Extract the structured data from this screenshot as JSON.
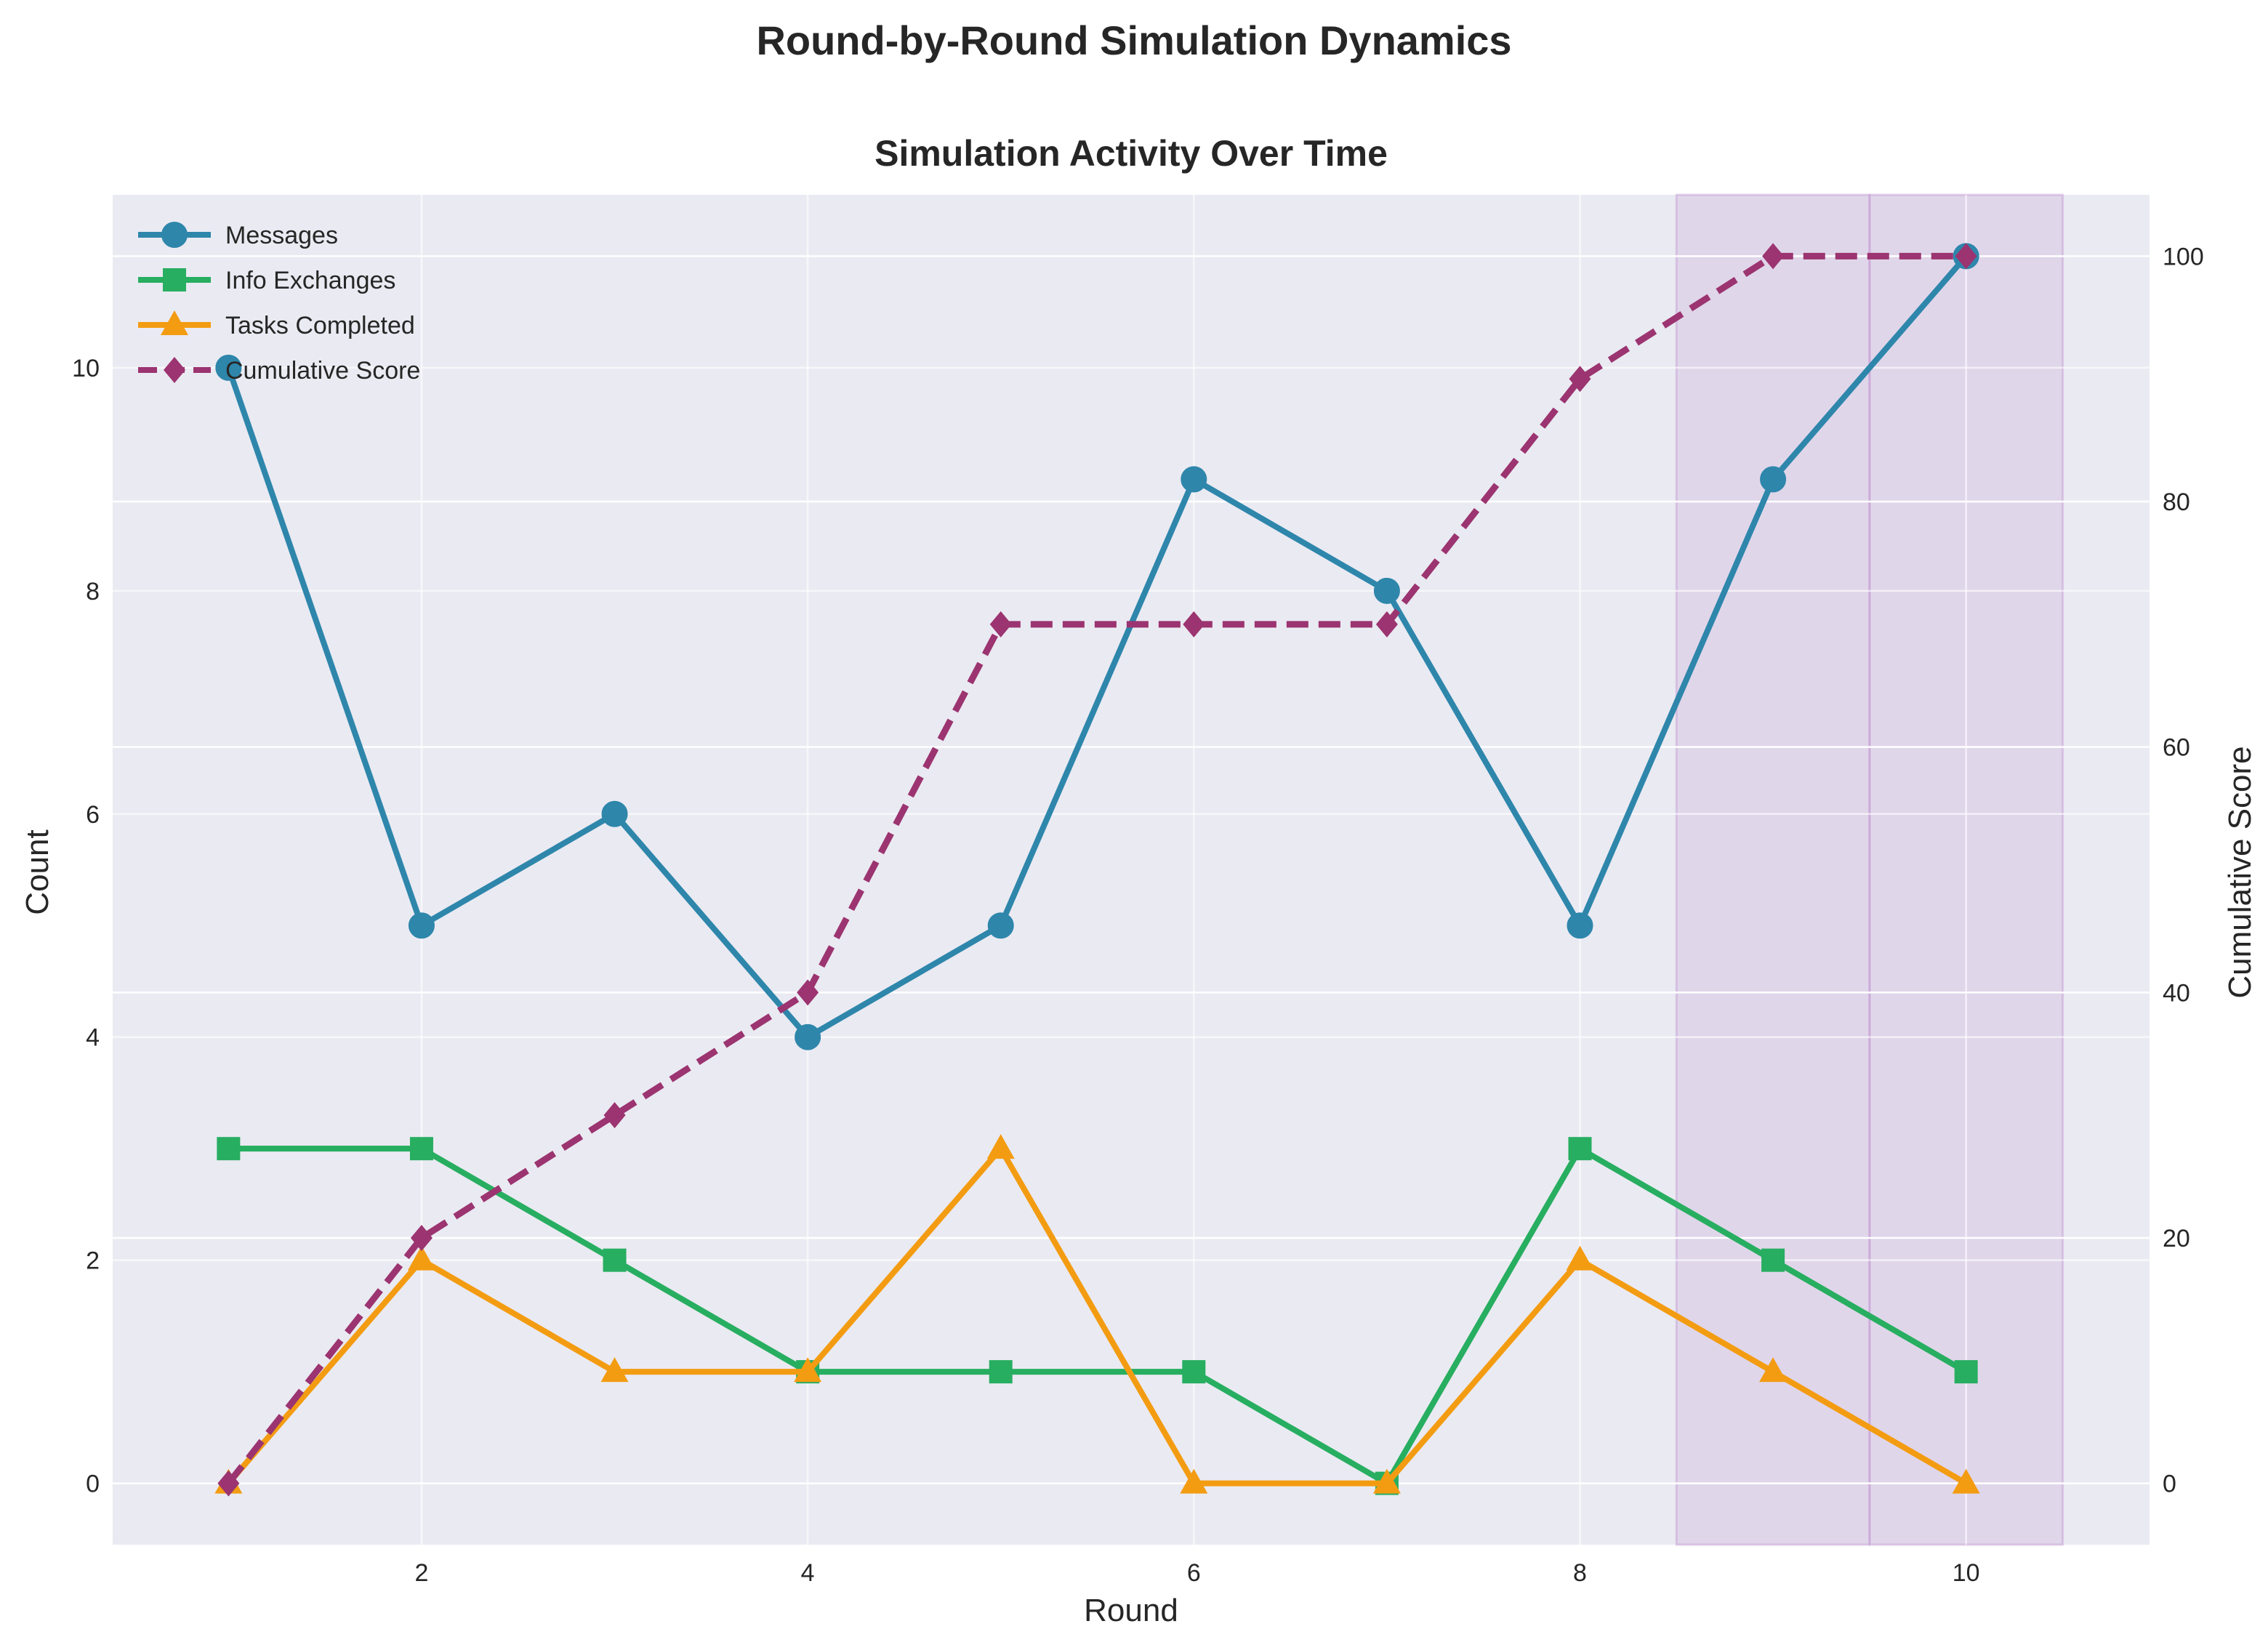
{
  "figure": {
    "suptitle": "Round-by-Round Simulation Dynamics"
  },
  "chart_data": {
    "type": "line",
    "title": "Simulation Activity Over Time",
    "xlabel": "Round",
    "ylabel": "Count",
    "ylabel_right": "Cumulative Score",
    "x": [
      1,
      2,
      3,
      4,
      5,
      6,
      7,
      8,
      9,
      10
    ],
    "xlim": [
      0.4,
      10.95
    ],
    "ylim": [
      -0.55,
      11.55
    ],
    "ylim_right": [
      -5,
      105
    ],
    "xticks": [
      2,
      4,
      6,
      8,
      10
    ],
    "yticks": [
      0,
      2,
      4,
      6,
      8,
      10
    ],
    "yticks_right": [
      0,
      20,
      40,
      60,
      80,
      100
    ],
    "grid": true,
    "legend_position": "top-left",
    "background": "#eaeaf2",
    "highlight_regions": [
      {
        "x_start": 8.5,
        "x_end": 9.5,
        "color": "#c39bd3"
      },
      {
        "x_start": 9.5,
        "x_end": 10.5,
        "color": "#c39bd3"
      }
    ],
    "series": [
      {
        "name": "Messages",
        "axis": "left",
        "color": "#2e86ab",
        "marker": "circle",
        "dash": "solid",
        "values": [
          10,
          5,
          6,
          4,
          5,
          9,
          8,
          5,
          9,
          11
        ]
      },
      {
        "name": "Info Exchanges",
        "axis": "left",
        "color": "#27ae60",
        "marker": "square",
        "dash": "solid",
        "values": [
          3,
          3,
          2,
          1,
          1,
          1,
          0,
          3,
          2,
          1
        ]
      },
      {
        "name": "Tasks Completed",
        "axis": "left",
        "color": "#f39c12",
        "marker": "triangle",
        "dash": "solid",
        "values": [
          0,
          2,
          1,
          1,
          3,
          0,
          0,
          2,
          1,
          0
        ]
      },
      {
        "name": "Cumulative Score",
        "axis": "right",
        "color": "#9b3470",
        "marker": "diamond",
        "dash": "dashed",
        "values": [
          0,
          20,
          30,
          40,
          70,
          70,
          70,
          90,
          100,
          100
        ]
      }
    ]
  }
}
